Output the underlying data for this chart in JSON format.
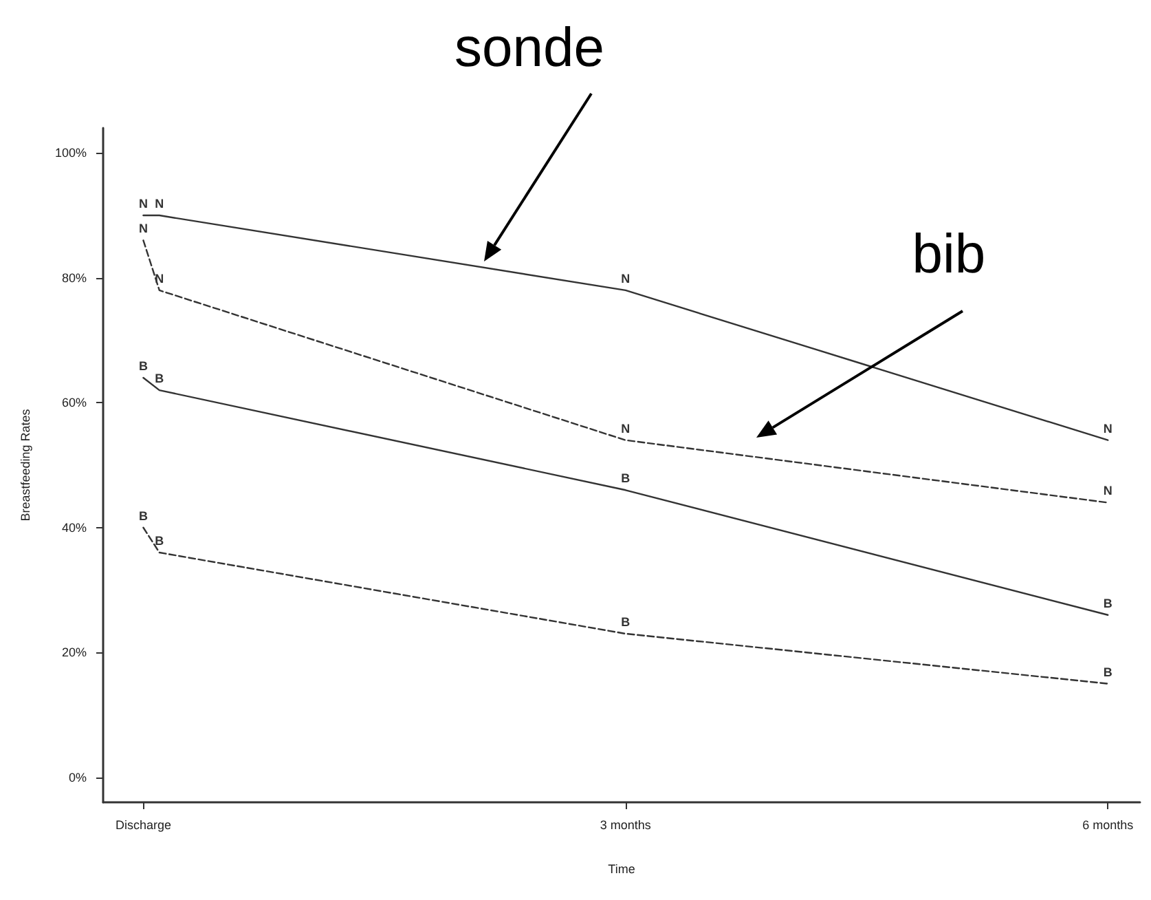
{
  "chart_data": {
    "type": "line",
    "xlabel": "Time",
    "ylabel": "Breastfeeding Rates",
    "xlim": [
      -0.25,
      6.2
    ],
    "xticks": [
      {
        "value": 0,
        "label": "Discharge"
      },
      {
        "value": 3,
        "label": "3 months"
      },
      {
        "value": 6,
        "label": "6 months"
      }
    ],
    "ylim": [
      -4,
      104
    ],
    "yticks": [
      {
        "value": 0,
        "label": "0%"
      },
      {
        "value": 20,
        "label": "20%"
      },
      {
        "value": 40,
        "label": "40%"
      },
      {
        "value": 60,
        "label": "60%"
      },
      {
        "value": 80,
        "label": "80%"
      },
      {
        "value": 100,
        "label": "100%"
      }
    ],
    "grid": false,
    "legend": false,
    "marker": "none",
    "series": [
      {
        "name": "N",
        "color": "#333333",
        "line_style": "solid",
        "x": [
          0,
          0.1,
          3,
          6
        ],
        "values": [
          90,
          90,
          78,
          54
        ]
      },
      {
        "name": "N",
        "color": "#333333",
        "line_style": "dashed",
        "x": [
          0,
          0.1,
          3,
          6
        ],
        "values": [
          86,
          78,
          54,
          44
        ]
      },
      {
        "name": "B",
        "color": "#333333",
        "line_style": "solid",
        "x": [
          0,
          0.1,
          3,
          6
        ],
        "values": [
          64,
          62,
          46,
          26
        ]
      },
      {
        "name": "B",
        "color": "#333333",
        "line_style": "dashed",
        "x": [
          0,
          0.1,
          3,
          6
        ],
        "values": [
          40,
          36,
          23,
          15
        ]
      }
    ],
    "annotations": [
      "sonde",
      "bib"
    ]
  }
}
